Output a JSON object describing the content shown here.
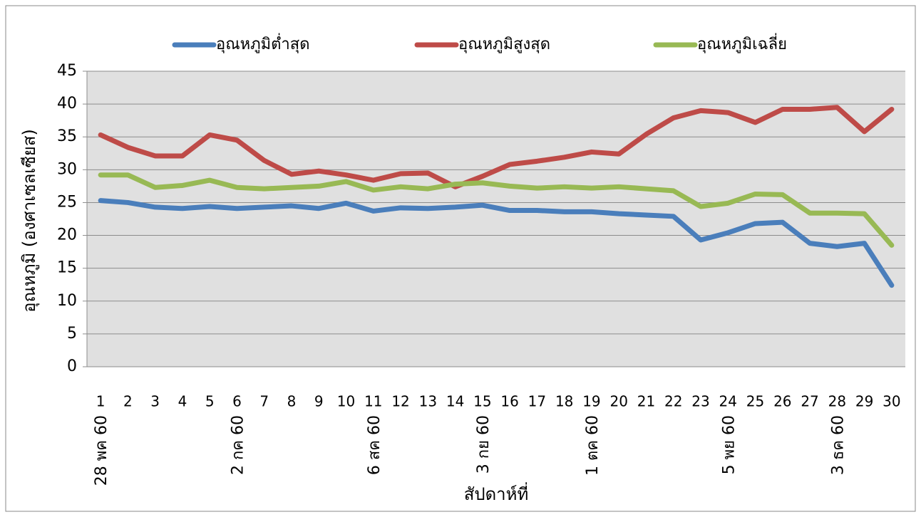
{
  "chart_data": {
    "type": "line",
    "y_label": "อุณหภูมิ (องศาเซลเซียส)",
    "x_label": "สัปดาห์ที่",
    "categories": [
      "1",
      "2",
      "3",
      "4",
      "5",
      "6",
      "7",
      "8",
      "9",
      "10",
      "11",
      "12",
      "13",
      "14",
      "15",
      "16",
      "17",
      "18",
      "19",
      "20",
      "21",
      "22",
      "23",
      "24",
      "25",
      "26",
      "27",
      "28",
      "29",
      "30"
    ],
    "date_labels": [
      "28 พค 60",
      null,
      null,
      null,
      null,
      "2 กค 60",
      null,
      null,
      null,
      null,
      "6 สค 60",
      null,
      null,
      null,
      "3 กย 60",
      null,
      null,
      null,
      "1 ตค 60",
      null,
      null,
      null,
      null,
      "5 พย 60",
      null,
      null,
      null,
      "3 ธค 60",
      null,
      null
    ],
    "series": [
      {
        "name": "อุณหภูมิต่ำสุด",
        "color": "#4a7ebb",
        "values": [
          25.3,
          25,
          24.3,
          24.1,
          24.4,
          24.1,
          24.3,
          24.5,
          24.1,
          24.9,
          23.7,
          24.2,
          24.1,
          24.3,
          24.6,
          23.8,
          23.8,
          23.6,
          23.6,
          23.3,
          23.1,
          22.9,
          19.3,
          20.4,
          21.8,
          22,
          18.8,
          18.3,
          18.8,
          12.4
        ]
      },
      {
        "name": "อุณหภูมิสูงสุด",
        "color": "#be4b48",
        "values": [
          35.3,
          33.4,
          32.1,
          32.1,
          35.3,
          34.5,
          31.4,
          29.3,
          29.8,
          29.2,
          28.4,
          29.4,
          29.5,
          27.4,
          29,
          30.8,
          31.3,
          31.9,
          32.7,
          32.4,
          35.4,
          37.9,
          39,
          38.7,
          37.2,
          39.2,
          39.2,
          39.5,
          35.8,
          39.2
        ]
      },
      {
        "name": "อุณหภูมิเฉลี่ย",
        "color": "#98b954",
        "values": [
          29.2,
          29.2,
          27.3,
          27.6,
          28.4,
          27.3,
          27.1,
          27.3,
          27.5,
          28.2,
          26.9,
          27.4,
          27.1,
          27.8,
          28,
          27.5,
          27.2,
          27.4,
          27.2,
          27.4,
          27.1,
          26.8,
          24.4,
          24.9,
          26.3,
          26.2,
          23.4,
          23.4,
          23.3,
          18.5
        ]
      }
    ],
    "ylim": [
      0,
      45
    ],
    "yticks": [
      0,
      5,
      10,
      15,
      20,
      25,
      30,
      35,
      40,
      45
    ],
    "grid": true,
    "legend": "top"
  }
}
